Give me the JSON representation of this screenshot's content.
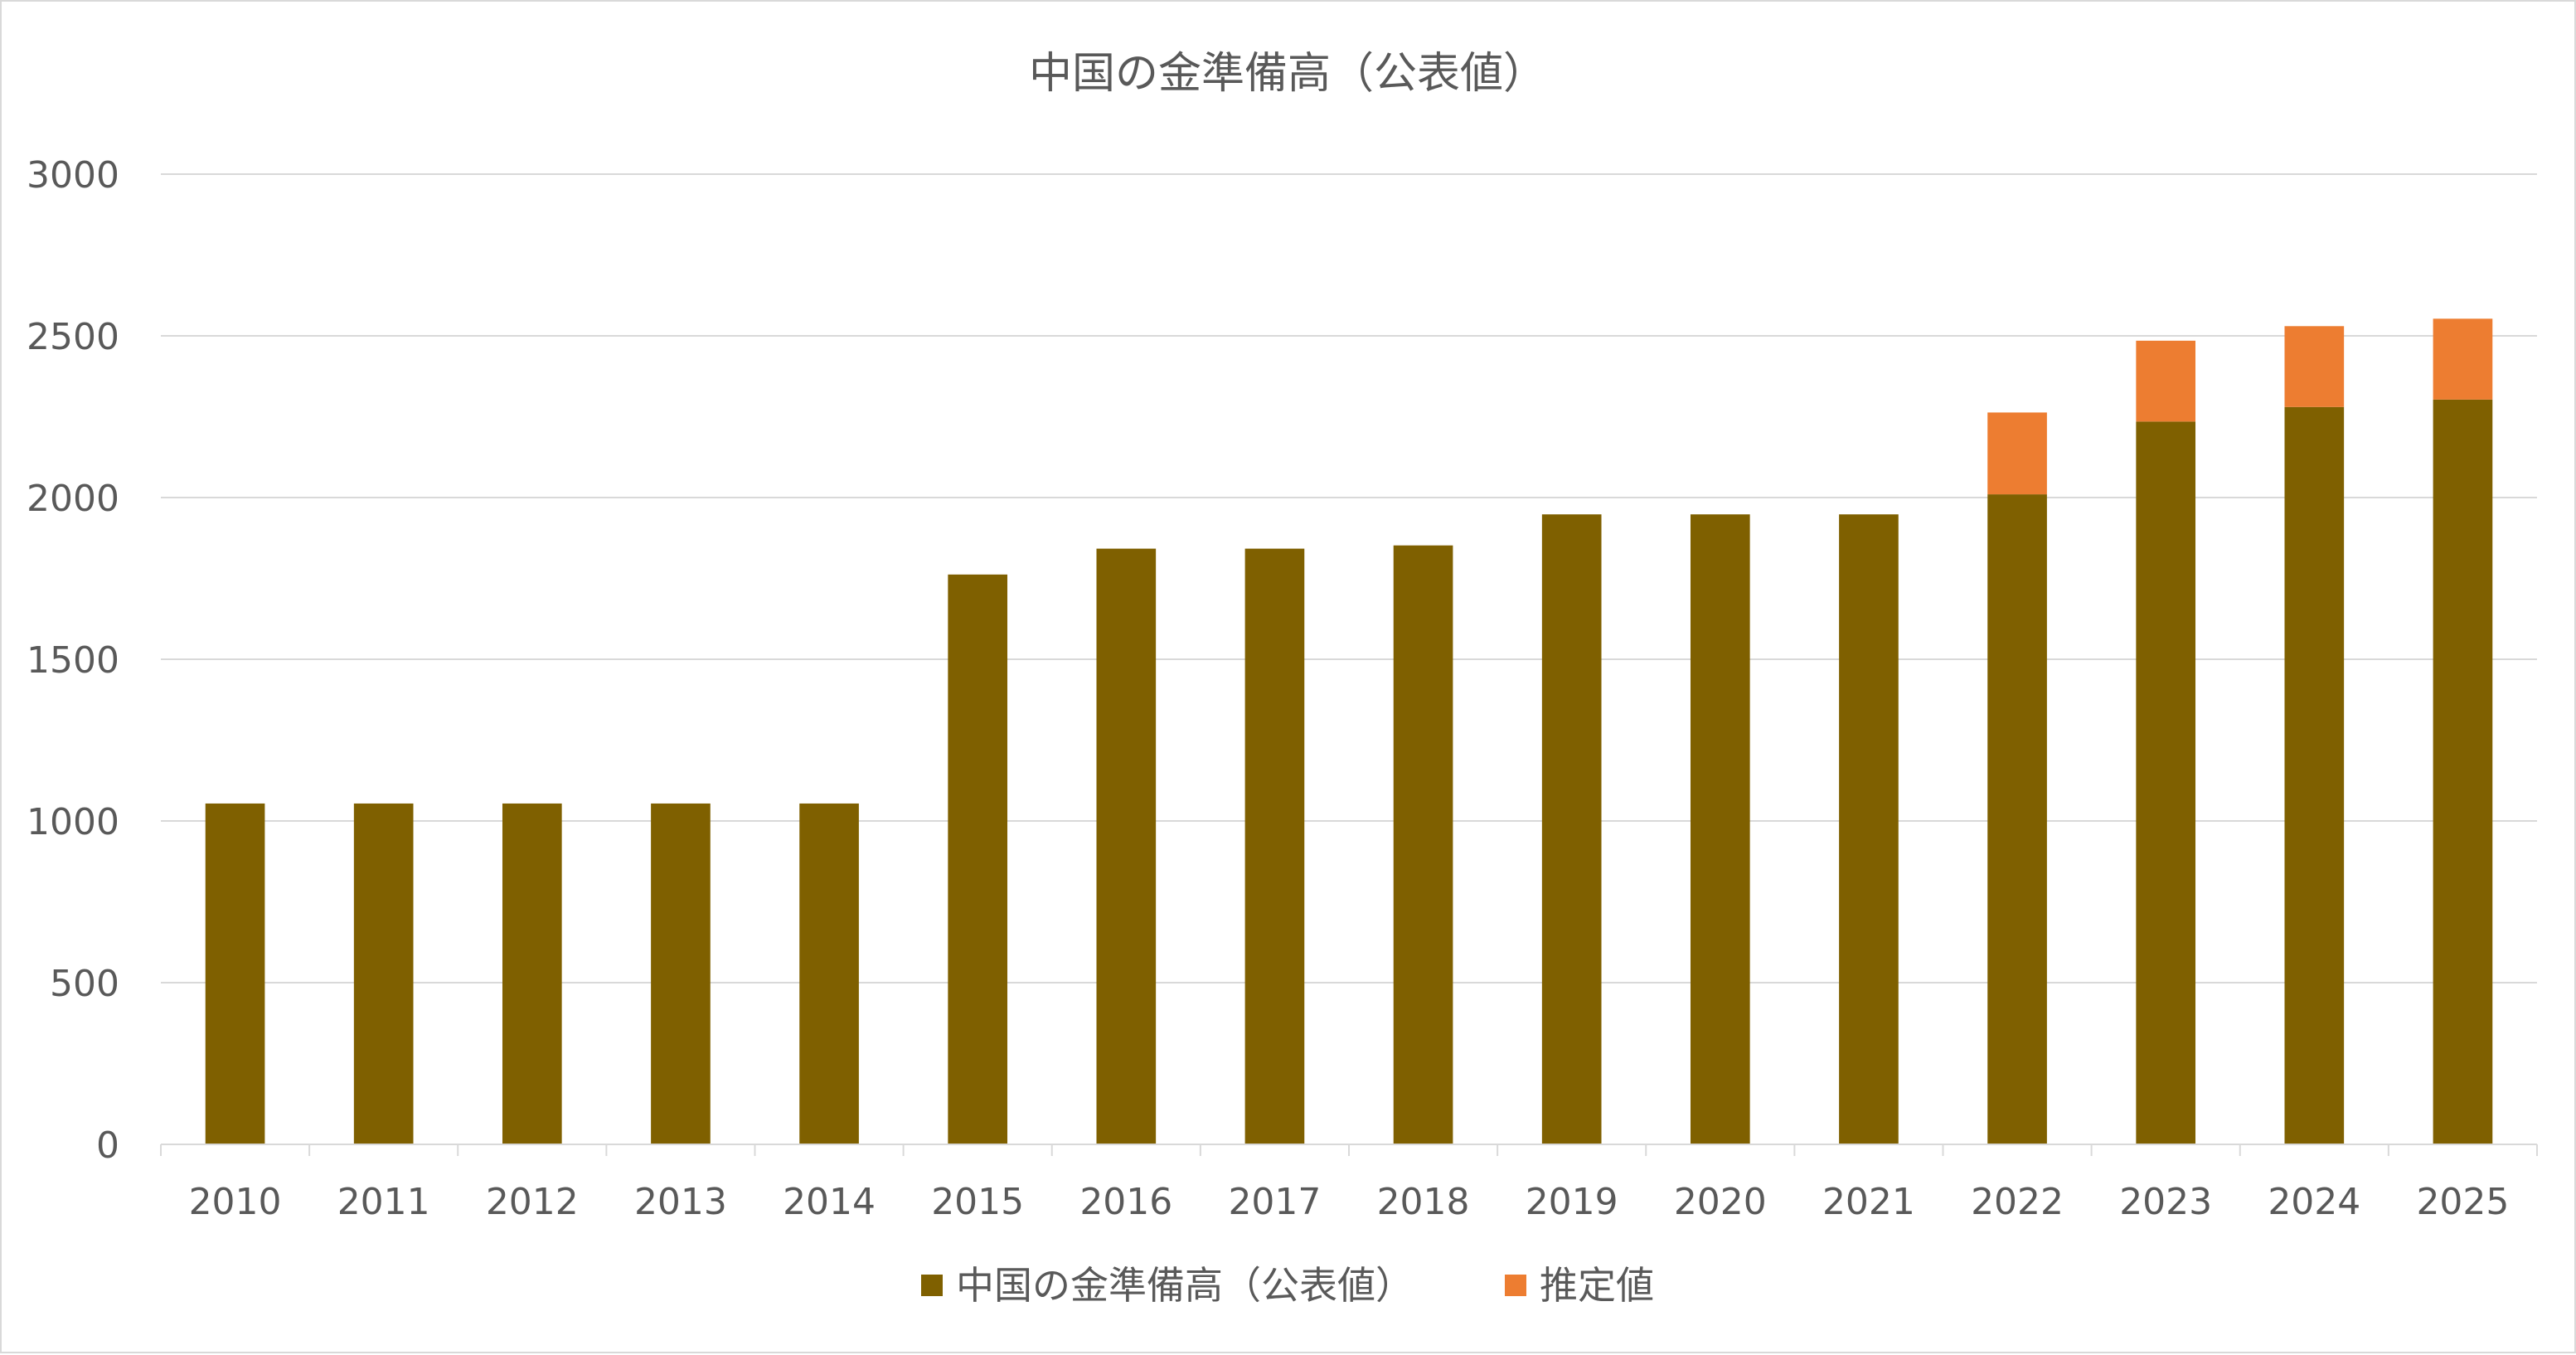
{
  "chart_data": {
    "type": "bar",
    "stacked": true,
    "title": "中国の金準備高（公表値）",
    "xlabel": "",
    "ylabel": "",
    "categories": [
      "2010",
      "2011",
      "2012",
      "2013",
      "2014",
      "2015",
      "2016",
      "2017",
      "2018",
      "2019",
      "2020",
      "2021",
      "2022",
      "2023",
      "2024",
      "2025"
    ],
    "ylim": [
      0,
      3000
    ],
    "yticks": [
      "0",
      "500",
      "1000",
      "1500",
      "2000",
      "2500",
      "3000"
    ],
    "grid": true,
    "legend_position": "bottom",
    "series": [
      {
        "name": "中国の金準備高（公表値）",
        "color": "#7f6000",
        "values": [
          1054,
          1054,
          1054,
          1054,
          1054,
          1762,
          1842,
          1842,
          1852,
          1948,
          1948,
          1948,
          2010,
          2235,
          2280,
          2303
        ]
      },
      {
        "name": "推定値",
        "color": "#ed7d31",
        "values": [
          0,
          0,
          0,
          0,
          0,
          0,
          0,
          0,
          0,
          0,
          0,
          0,
          253,
          250,
          250,
          250
        ]
      }
    ]
  }
}
